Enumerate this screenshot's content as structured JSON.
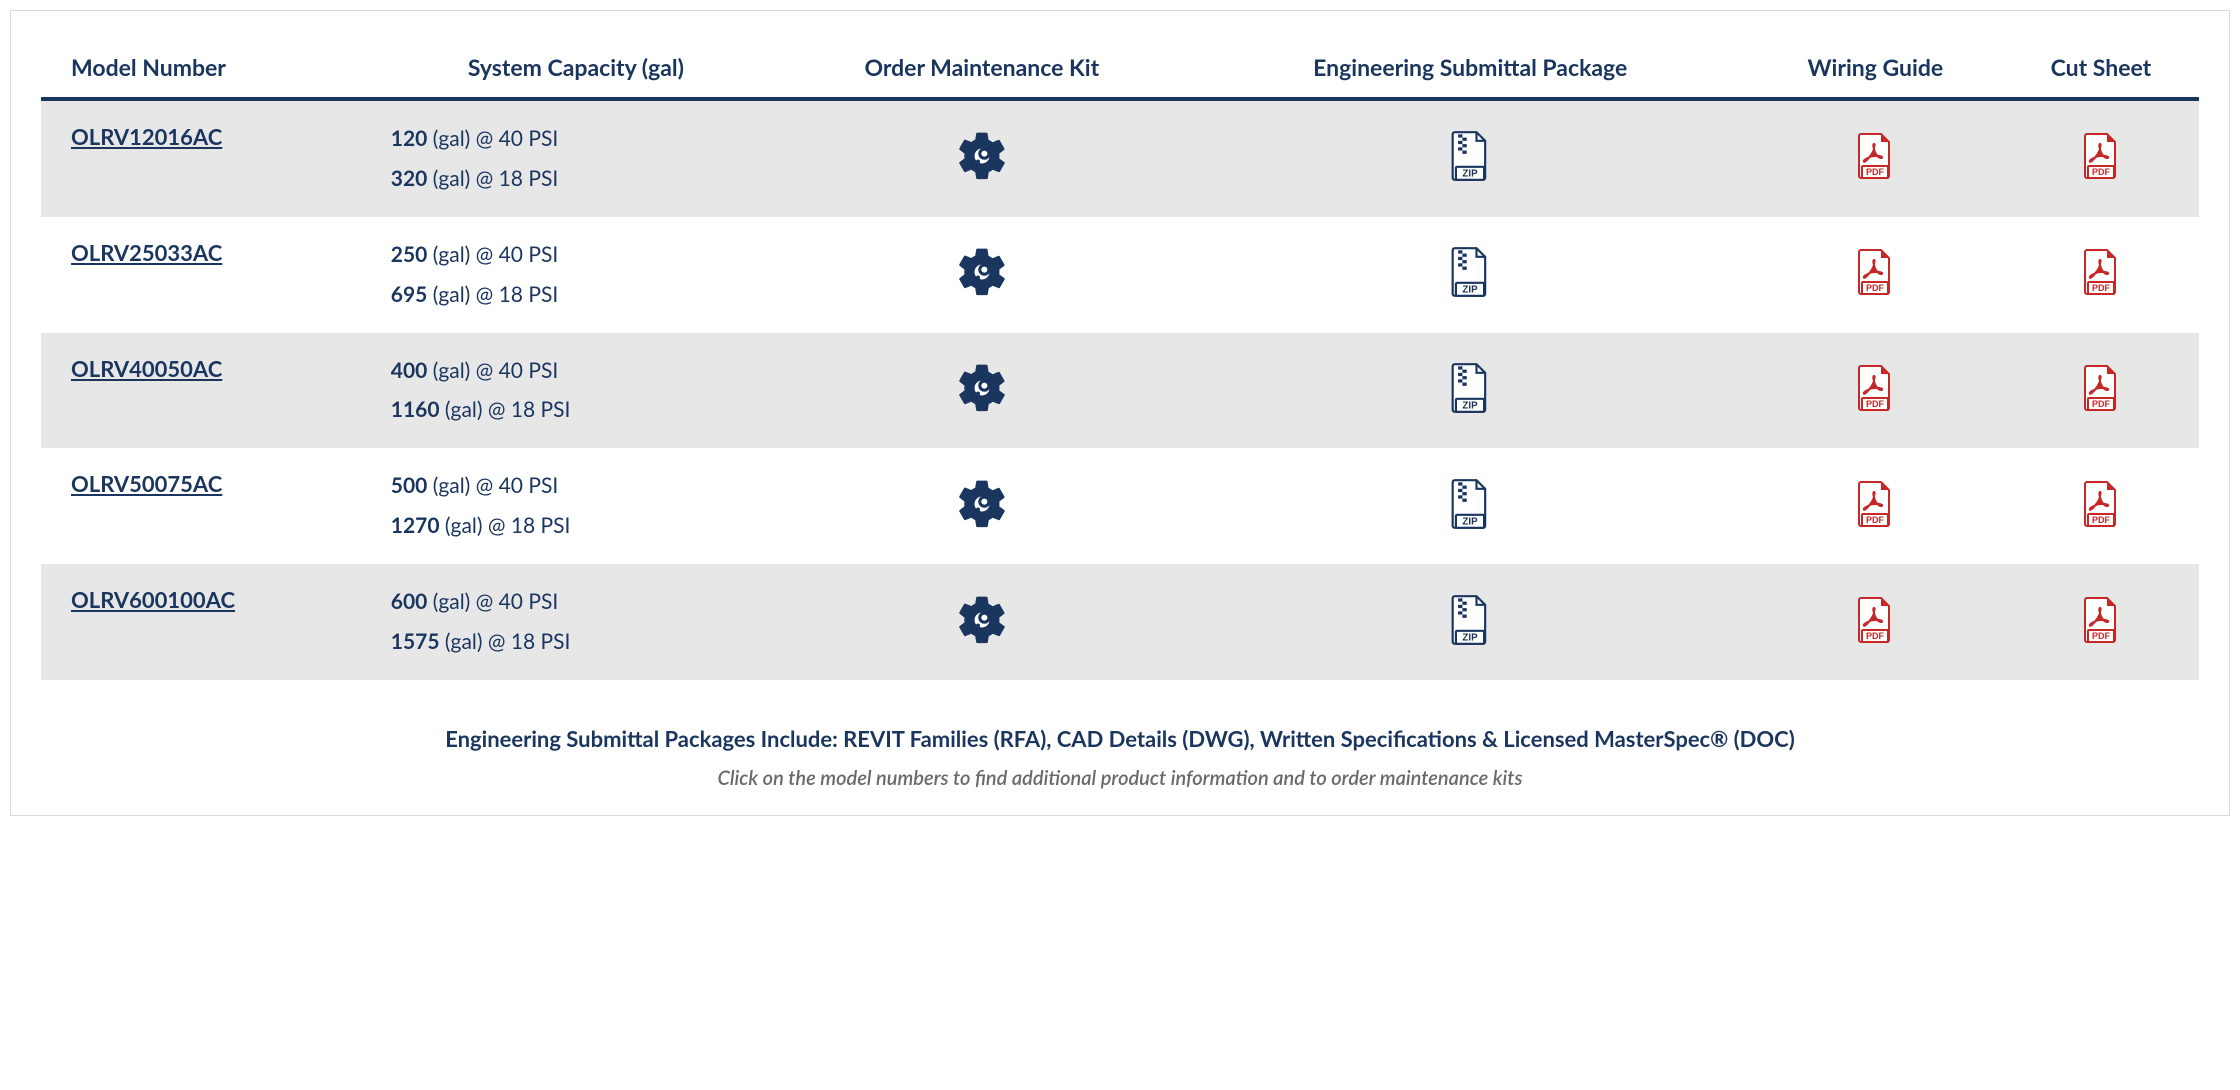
{
  "colors": {
    "primary": "#1a355e",
    "row_odd_bg": "#e7e7e8",
    "row_even_bg": "#ffffff",
    "pdf_icon": "#c62828",
    "zip_icon": "#1a355e",
    "gear_icon": "#1a355e",
    "footer_gray": "#6a6a6a",
    "border": "#d9d9d9"
  },
  "table": {
    "headers": {
      "model": "Model Number",
      "capacity": "System Capacity (gal)",
      "maint": "Order Maintenance Kit",
      "submittal": "Engineering Submittal Package",
      "wiring": "Wiring Guide",
      "cutsheet": "Cut Sheet"
    },
    "capacity_template": {
      "unit": "(gal)",
      "at": "@",
      "psi_hi": "40 PSI",
      "psi_lo": "18 PSI"
    },
    "rows": [
      {
        "model": "OLRV12016AC",
        "cap_hi": "120",
        "cap_lo": "320"
      },
      {
        "model": "OLRV25033AC",
        "cap_hi": "250",
        "cap_lo": "695"
      },
      {
        "model": "OLRV40050AC",
        "cap_hi": "400",
        "cap_lo": "1160"
      },
      {
        "model": "OLRV50075AC",
        "cap_hi": "500",
        "cap_lo": "1270"
      },
      {
        "model": "OLRV600100AC",
        "cap_hi": "600",
        "cap_lo": "1575"
      }
    ]
  },
  "footer": {
    "line1": "Engineering Submittal Packages Include: REVIT Families (RFA), CAD Details (DWG), Written Specifications & Licensed MasterSpec® (DOC)",
    "line2": "Click on the model numbers to find additional product information and to order maintenance kits"
  },
  "icon_labels": {
    "zip": "ZIP",
    "pdf": "PDF"
  }
}
